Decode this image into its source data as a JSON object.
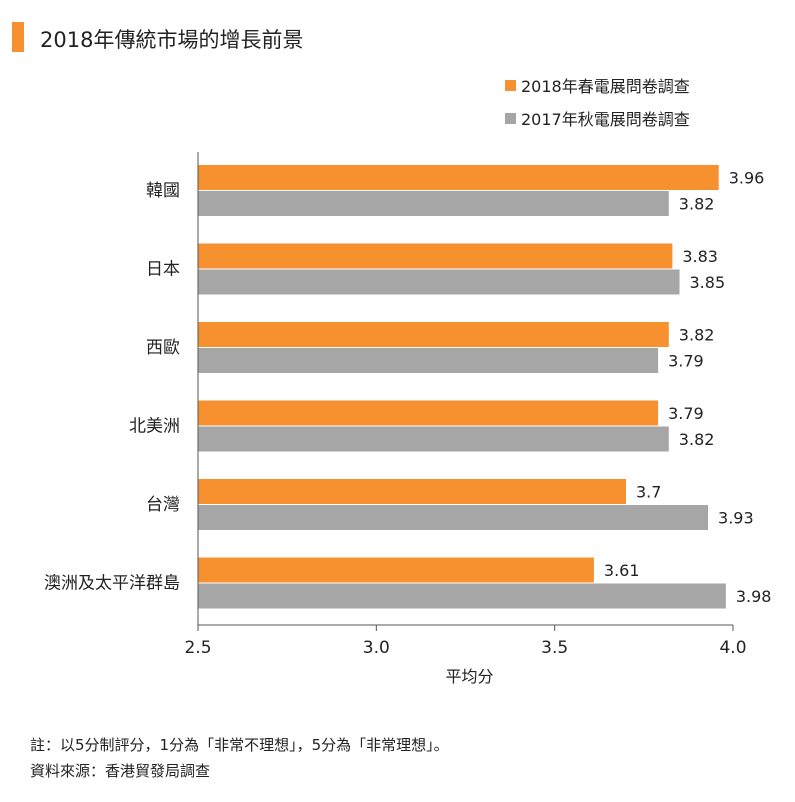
{
  "header": {
    "title": "2018年傳統市場的增長前景"
  },
  "chart_data": {
    "type": "bar",
    "orientation": "horizontal",
    "categories": [
      "韓國",
      "日本",
      "西歐",
      "北美洲",
      "台灣",
      "澳洲及太平洋群島"
    ],
    "series": [
      {
        "name": "2018年春電展問卷調查",
        "color": "#f7902f",
        "values": [
          3.96,
          3.83,
          3.82,
          3.79,
          3.7,
          3.61
        ],
        "labels": [
          "3.96",
          "3.83",
          "3.82",
          "3.79",
          "3.7",
          "3.61"
        ]
      },
      {
        "name": "2017年秋電展問卷調查",
        "color": "#a6a6a6",
        "values": [
          3.82,
          3.85,
          3.79,
          3.82,
          3.93,
          3.98
        ],
        "labels": [
          "3.82",
          "3.85",
          "3.79",
          "3.82",
          "3.93",
          "3.98"
        ]
      }
    ],
    "xlabel": "平均分",
    "xlim": [
      2.5,
      4.0
    ],
    "xticks": [
      "2.5",
      "3.0",
      "3.5",
      "4.0"
    ],
    "legend_position": "top-right",
    "grid": false
  },
  "footer": {
    "note": "註：以5分制評分，1分為「非常不理想」，5分為「非常理想」。",
    "source": "資料來源：香港貿發局調查"
  }
}
